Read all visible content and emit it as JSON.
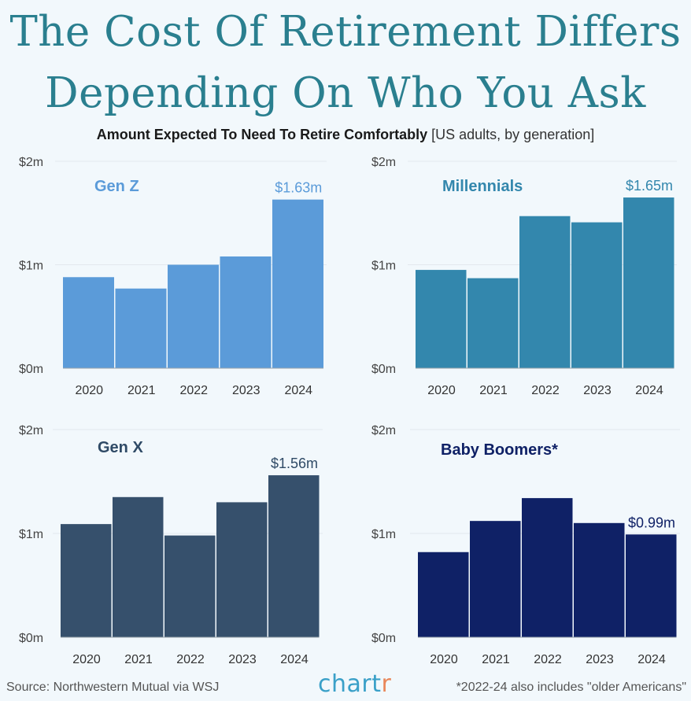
{
  "title_line1": "The Cost Of Retirement Differs",
  "title_line2": "Depending On Who You Ask",
  "subtitle": {
    "main": "Amount Expected To Need To Retire Comfortably",
    "note": "[US adults, by generation]"
  },
  "footer": {
    "source": "Source: Northwestern Mutual via WSJ",
    "logo_main": "chart",
    "logo_end": "r",
    "footnote": "*2022-24 also includes \"older Americans\""
  },
  "colors": {
    "gen_z": "#5b9bd9",
    "millennials": "#3387ad",
    "gen_x": "#36506c",
    "boomers": "#0f2166",
    "title": "#2a7f8f"
  },
  "chart_data": [
    {
      "type": "bar",
      "title": "Gen Z",
      "categories": [
        "2020",
        "2021",
        "2022",
        "2023",
        "2024"
      ],
      "values": [
        0.88,
        0.77,
        1.0,
        1.08,
        1.63
      ],
      "y_ticks": [
        "$0m",
        "$1m",
        "$2m"
      ],
      "ylim": [
        0,
        2
      ],
      "data_label": "$1.63m",
      "color": "#5b9bd9",
      "title_color": "#5b9bd9",
      "label_color": "#5b9bd9"
    },
    {
      "type": "bar",
      "title": "Millennials",
      "categories": [
        "2020",
        "2021",
        "2022",
        "2023",
        "2024"
      ],
      "values": [
        0.95,
        0.87,
        1.47,
        1.41,
        1.65
      ],
      "y_ticks": [
        "$0m",
        "$1m",
        "$2m"
      ],
      "ylim": [
        0,
        2
      ],
      "data_label": "$1.65m",
      "color": "#3387ad",
      "title_color": "#3387ad",
      "label_color": "#3387ad"
    },
    {
      "type": "bar",
      "title": "Gen X",
      "categories": [
        "2020",
        "2021",
        "2022",
        "2023",
        "2024"
      ],
      "values": [
        1.09,
        1.35,
        0.98,
        1.3,
        1.56
      ],
      "y_ticks": [
        "$0m",
        "$1m",
        "$2m"
      ],
      "ylim": [
        0,
        2
      ],
      "data_label": "$1.56m",
      "color": "#36506c",
      "title_color": "#2f4a66",
      "label_color": "#2f4a66"
    },
    {
      "type": "bar",
      "title": "Baby Boomers*",
      "categories": [
        "2020",
        "2021",
        "2022",
        "2023",
        "2024"
      ],
      "values": [
        0.82,
        1.12,
        1.34,
        1.1,
        0.99
      ],
      "y_ticks": [
        "$0m",
        "$1m",
        "$2m"
      ],
      "ylim": [
        0,
        2
      ],
      "data_label": "$0.99m",
      "color": "#0f2166",
      "title_color": "#0f2166",
      "label_color": "#0f2166"
    }
  ]
}
